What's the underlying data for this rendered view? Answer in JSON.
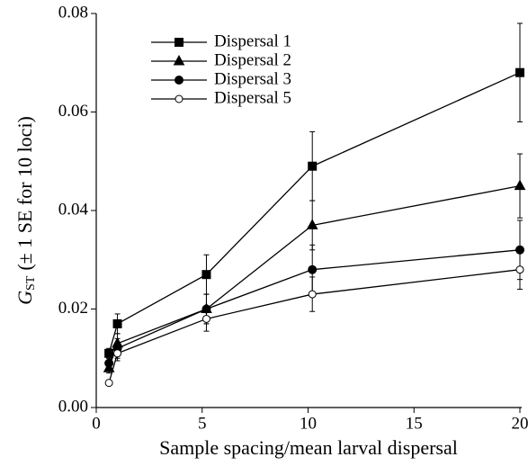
{
  "chart_data": {
    "type": "line",
    "xlabel": "Sample spacing/mean larval dispersal",
    "ylabel_symbol": "G",
    "ylabel_subscript": "ST",
    "ylabel_text": "(± 1 SE for 10 loci)",
    "x": [
      0.6,
      1.0,
      5.2,
      10.2,
      20
    ],
    "series": [
      {
        "name": "Dispersal 1",
        "color": "#000000",
        "marker": "square",
        "values": [
          0.011,
          0.017,
          0.027,
          0.049,
          0.068
        ],
        "errors": [
          0.001,
          0.002,
          0.004,
          0.007,
          0.01
        ]
      },
      {
        "name": "Dispersal 2",
        "color": "#000000",
        "marker": "triangle",
        "values": [
          0.008,
          0.013,
          0.02,
          0.037,
          0.045
        ],
        "errors": [
          0.001,
          0.002,
          0.003,
          0.005,
          0.0065
        ]
      },
      {
        "name": "Dispersal 3",
        "color": "#000000",
        "marker": "circle",
        "values": [
          0.009,
          0.012,
          0.02,
          0.028,
          0.032
        ],
        "errors": [
          0.001,
          0.002,
          0.003,
          0.005,
          0.006
        ]
      },
      {
        "name": "Dispersal 5",
        "color": "#000000",
        "marker": "open-circle",
        "values": [
          0.005,
          0.011,
          0.018,
          0.023,
          0.028
        ],
        "errors": [
          0.0005,
          0.0015,
          0.0025,
          0.0035,
          0.004
        ]
      }
    ],
    "xlim": [
      0,
      20
    ],
    "xticks": [
      0,
      5,
      10,
      15,
      20
    ],
    "ylim": [
      0,
      0.08
    ],
    "yticks": [
      {
        "value": 0,
        "label": "0.00"
      },
      {
        "value": 0.02,
        "label": "0.02"
      },
      {
        "value": 0.04,
        "label": "0.04"
      },
      {
        "value": 0.06,
        "label": "0.06"
      },
      {
        "value": 0.08,
        "label": "0.08"
      }
    ],
    "legend": "upper-left",
    "grid": false
  }
}
